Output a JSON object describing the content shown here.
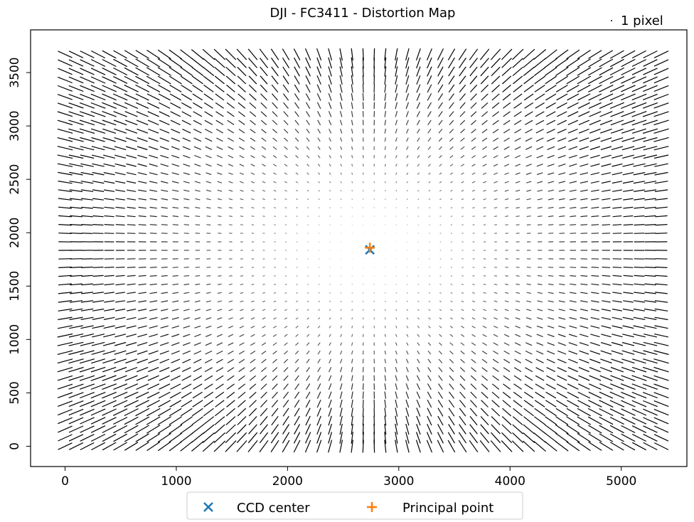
{
  "chart_data": {
    "type": "quiver",
    "title": "DJI - FC3411 - Distortion Map",
    "scale_key_label": "1 pixel",
    "xlabel": "",
    "ylabel": "",
    "xlim": [
      -310,
      5590
    ],
    "ylim": [
      -190,
      3900
    ],
    "x_ticks": [
      0,
      1000,
      2000,
      3000,
      4000,
      5000
    ],
    "y_ticks": [
      0,
      500,
      1000,
      1500,
      2000,
      2500,
      3000,
      3500
    ],
    "grid": false,
    "vector_field": {
      "x_range": [
        0,
        5360
      ],
      "y_range": [
        0,
        3670
      ],
      "cols": 55,
      "rows": 47,
      "pattern": "radial distortion about principal point"
    },
    "points": [
      {
        "name": "CCD center",
        "marker": "x",
        "x": 2740,
        "y": 1840,
        "color": "#1f77b4"
      },
      {
        "name": "Principal point",
        "marker": "+",
        "x": 2740,
        "y": 1860,
        "color": "#ff7f0e"
      }
    ],
    "legend": {
      "position": "bottom-center",
      "entries": [
        "CCD center",
        "Principal point"
      ]
    }
  }
}
